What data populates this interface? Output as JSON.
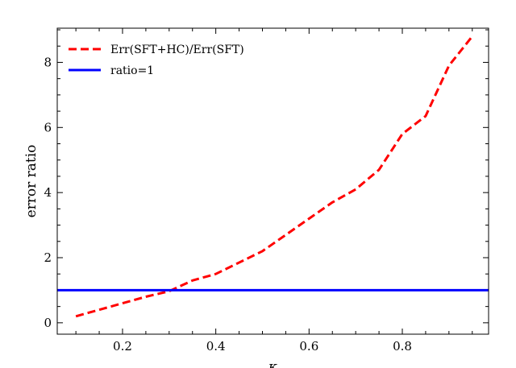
{
  "chart_data": {
    "type": "line",
    "xlabel": "κ",
    "ylabel": "error ratio",
    "xlim": [
      0.06,
      0.985
    ],
    "ylim": [
      -0.35,
      9.05
    ],
    "x_ticks": [
      0.2,
      0.4,
      0.6,
      0.8
    ],
    "x_tick_labels": [
      "0.2",
      "0.4",
      "0.6",
      "0.8"
    ],
    "y_ticks": [
      0,
      2,
      4,
      6,
      8
    ],
    "y_tick_labels": [
      "0",
      "2",
      "4",
      "6",
      "8"
    ],
    "x_minor_step": 0.05,
    "y_minor_step": 0.5,
    "grid": false,
    "legend_position": "top-left",
    "series": [
      {
        "name": "Err(SFT+HC)/Err(SFT)",
        "color": "#ff0000",
        "style": "dashed",
        "x": [
          0.1,
          0.15,
          0.2,
          0.25,
          0.3,
          0.35,
          0.4,
          0.45,
          0.5,
          0.55,
          0.6,
          0.65,
          0.7,
          0.75,
          0.8,
          0.85,
          0.9,
          0.95
        ],
        "y": [
          0.2,
          0.4,
          0.6,
          0.8,
          0.97,
          1.3,
          1.5,
          1.85,
          2.2,
          2.7,
          3.2,
          3.7,
          4.1,
          4.7,
          5.8,
          6.35,
          7.9,
          8.8
        ]
      },
      {
        "name": "ratio=1",
        "color": "#0000ff",
        "style": "solid",
        "x": [
          0.06,
          0.985
        ],
        "y": [
          1.0,
          1.0
        ]
      }
    ]
  }
}
